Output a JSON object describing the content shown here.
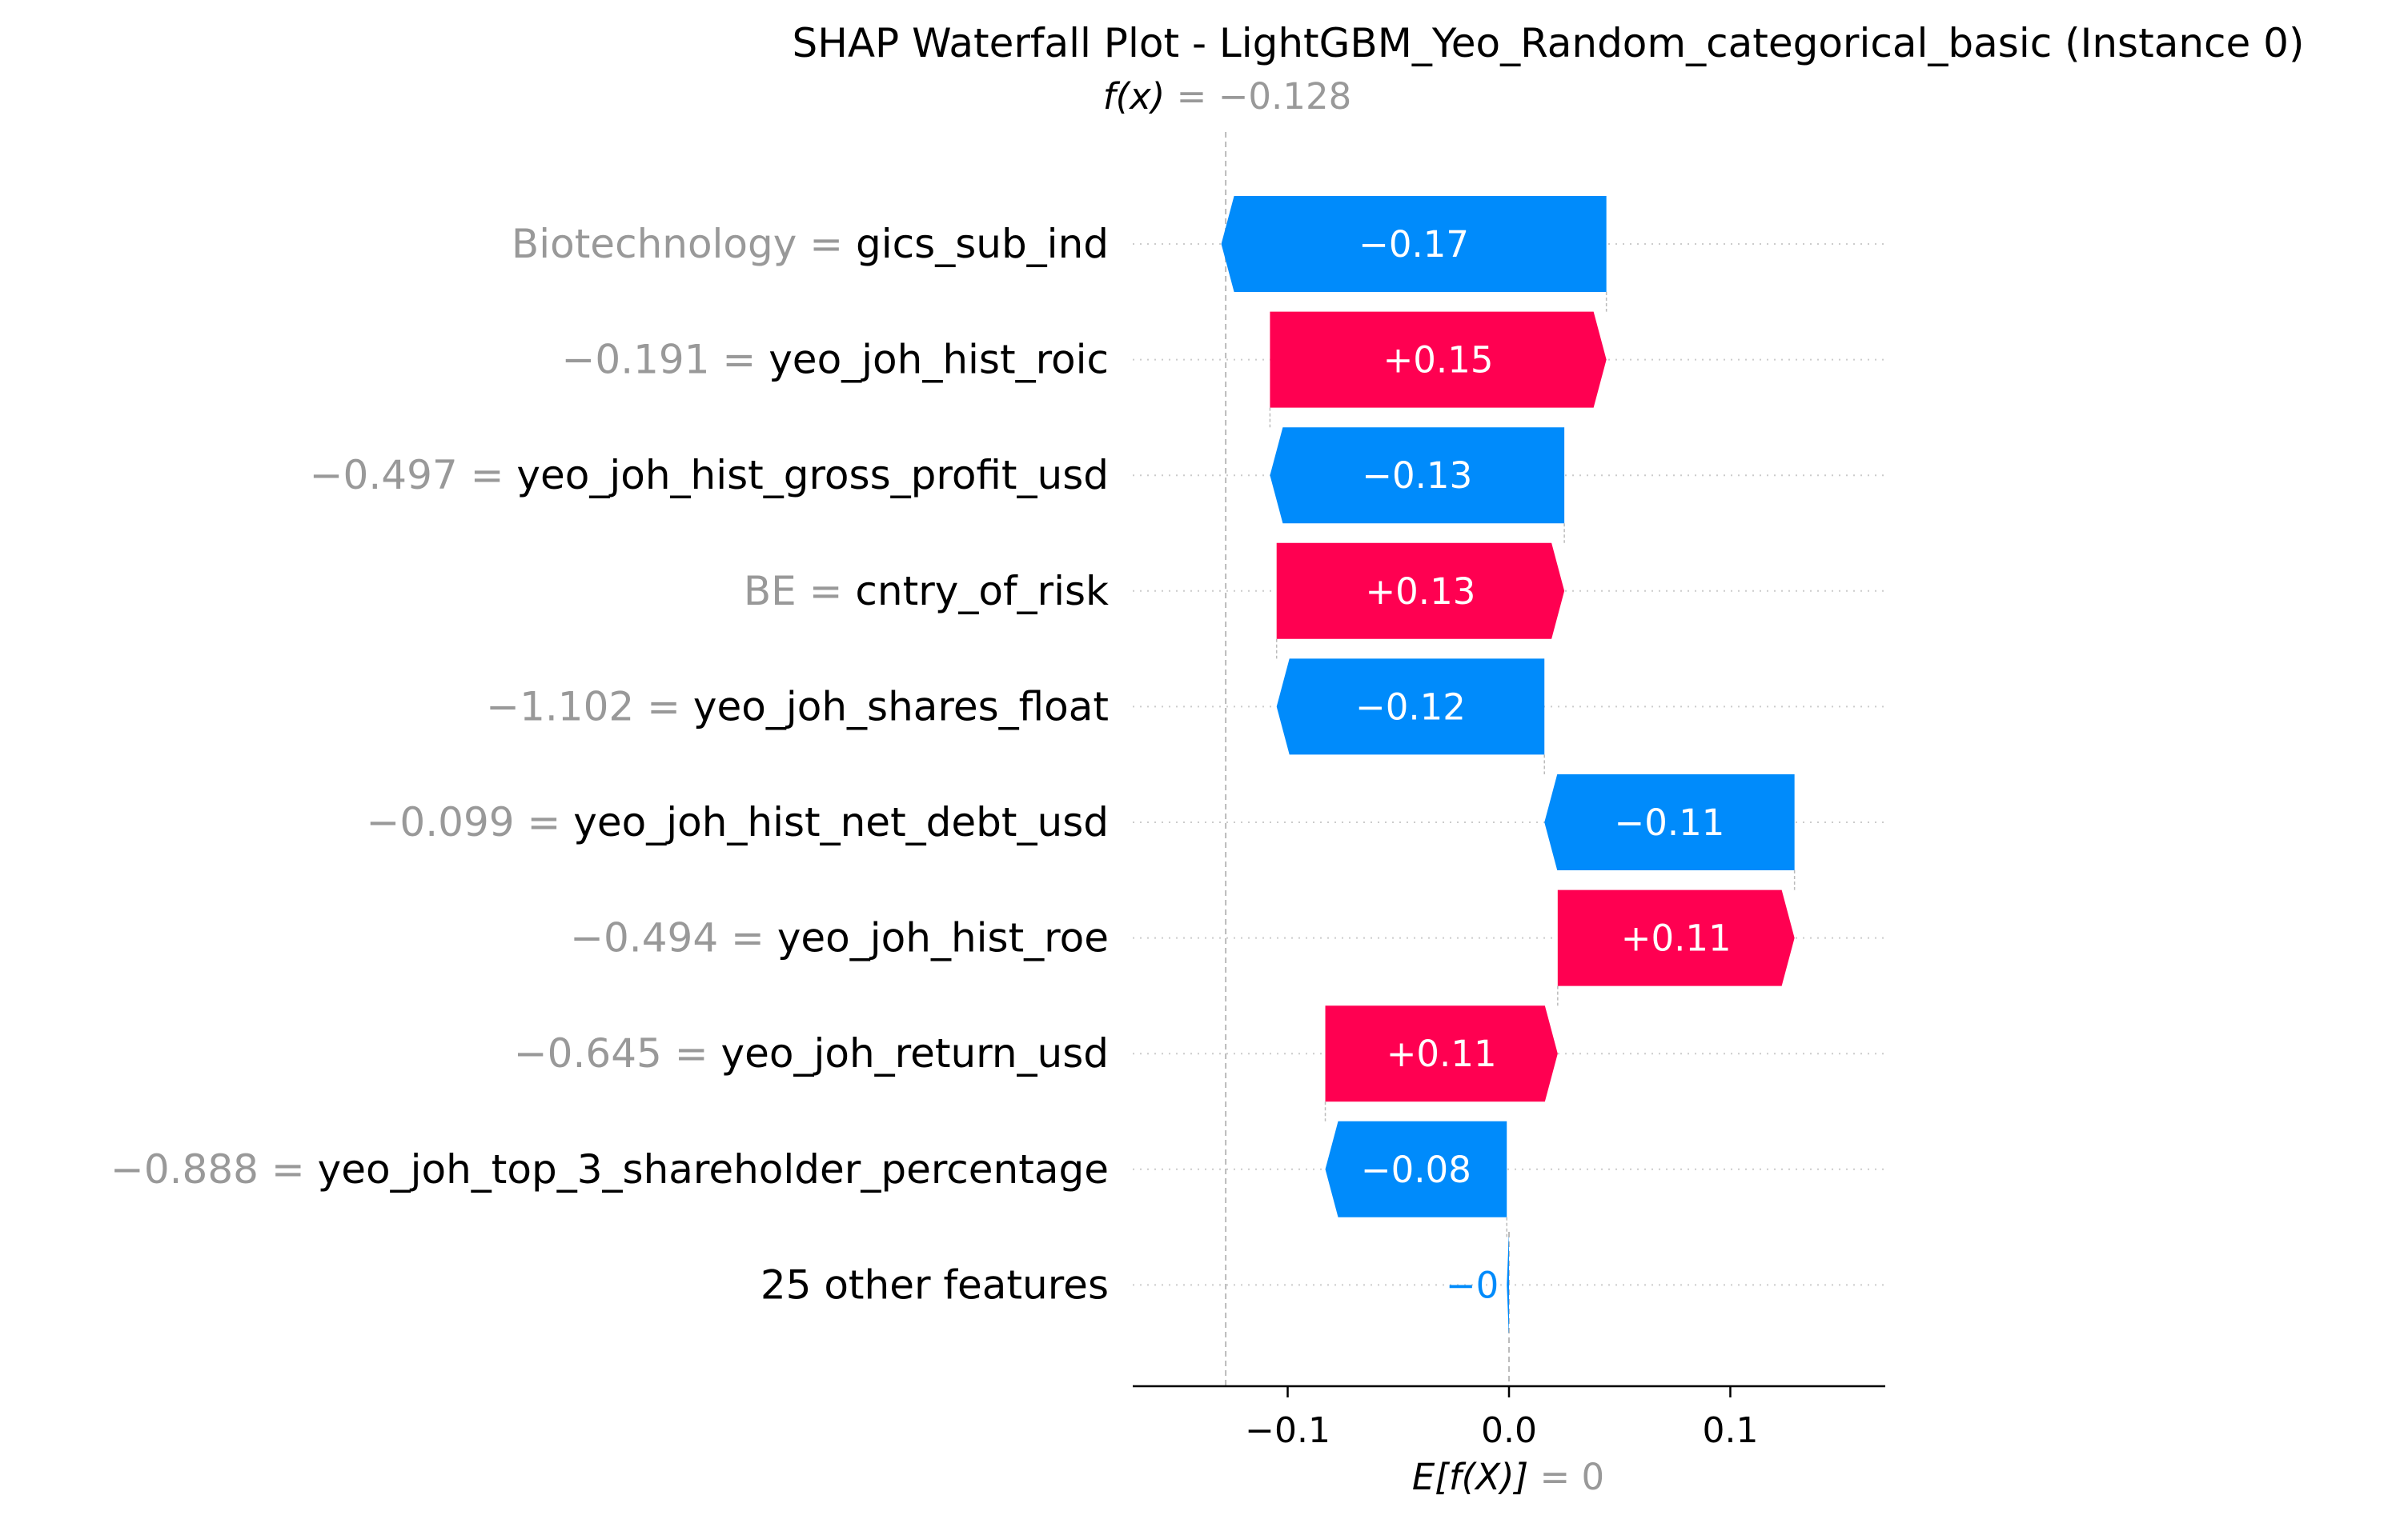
{
  "chart_data": {
    "type": "waterfall",
    "title": "SHAP Waterfall Plot - LightGBM_Yeo_Random_categorical_basic (Instance 0)",
    "fx": {
      "label": "f(x)",
      "equals": " = ",
      "value_text": "−0.128",
      "value": -0.128
    },
    "base": {
      "label": "E[f(X)]",
      "equals": " = ",
      "value_text": "0",
      "value": 0
    },
    "xlim": [
      -0.17,
      0.17
    ],
    "xticks": [
      {
        "value": -0.1,
        "label": "−0.1"
      },
      {
        "value": 0.0,
        "label": "0.0"
      },
      {
        "value": 0.1,
        "label": "0.1"
      }
    ],
    "features": [
      {
        "value_text": "Biotechnology",
        "name": "gics_sub_ind",
        "shap": -0.174,
        "shap_label": "−0.17"
      },
      {
        "value_text": "−0.191",
        "name": "yeo_joh_hist_roic",
        "shap": 0.152,
        "shap_label": "+0.15"
      },
      {
        "value_text": "−0.497",
        "name": "yeo_joh_hist_gross_profit_usd",
        "shap": -0.133,
        "shap_label": "−0.13"
      },
      {
        "value_text": "BE",
        "name": "cntry_of_risk",
        "shap": 0.13,
        "shap_label": "+0.13"
      },
      {
        "value_text": "−1.102",
        "name": "yeo_joh_shares_float",
        "shap": -0.121,
        "shap_label": "−0.12"
      },
      {
        "value_text": "−0.099",
        "name": "yeo_joh_hist_net_debt_usd",
        "shap": -0.113,
        "shap_label": "−0.11"
      },
      {
        "value_text": "−0.494",
        "name": "yeo_joh_hist_roe",
        "shap": 0.107,
        "shap_label": "+0.11"
      },
      {
        "value_text": "−0.645",
        "name": "yeo_joh_return_usd",
        "shap": 0.105,
        "shap_label": "+0.11"
      },
      {
        "value_text": "−0.888",
        "name": "yeo_joh_top_3_shareholder_percentage",
        "shap": -0.082,
        "shap_label": "−0.08"
      },
      {
        "value_text": "",
        "name": "25 other features",
        "shap": -0.001,
        "shap_label": "−0"
      }
    ],
    "colors": {
      "positive": "#ff0051",
      "negative": "#008bfb",
      "value_gray": "#999999",
      "guide": "#bbbbbb",
      "dotted": "#cccccc"
    }
  }
}
